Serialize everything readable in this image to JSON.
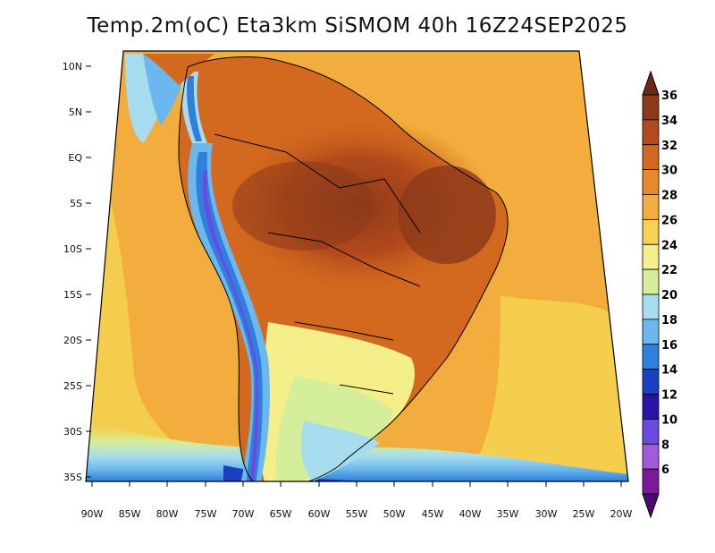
{
  "title": "Temp.2m(oC) Eta3km SiSMOM 40h 16Z24SEP2025",
  "lat_labels": [
    "10N",
    "5N",
    "EQ",
    "5S",
    "10S",
    "15S",
    "20S",
    "25S",
    "30S",
    "35S"
  ],
  "lon_labels": [
    "90W",
    "85W",
    "80W",
    "75W",
    "70W",
    "65W",
    "60W",
    "55W",
    "50W",
    "45W",
    "40W",
    "35W",
    "30W",
    "25W",
    "20W"
  ],
  "colorbar": {
    "labels": [
      "36",
      "34",
      "32",
      "30",
      "28",
      "26",
      "24",
      "22",
      "20",
      "18",
      "16",
      "14",
      "12",
      "10",
      "8",
      "6"
    ],
    "colors": [
      "#6b2a14",
      "#8c3a1a",
      "#b34a1c",
      "#d2691e",
      "#e98a2a",
      "#f2ad3c",
      "#f6d250",
      "#f4ef8a",
      "#d4ee9c",
      "#a6dcee",
      "#6cb8ee",
      "#2f7fdc",
      "#1a3fc0",
      "#2a12a8",
      "#6a4ae0",
      "#a25adc",
      "#7a1a98",
      "#4a0a70"
    ]
  }
}
